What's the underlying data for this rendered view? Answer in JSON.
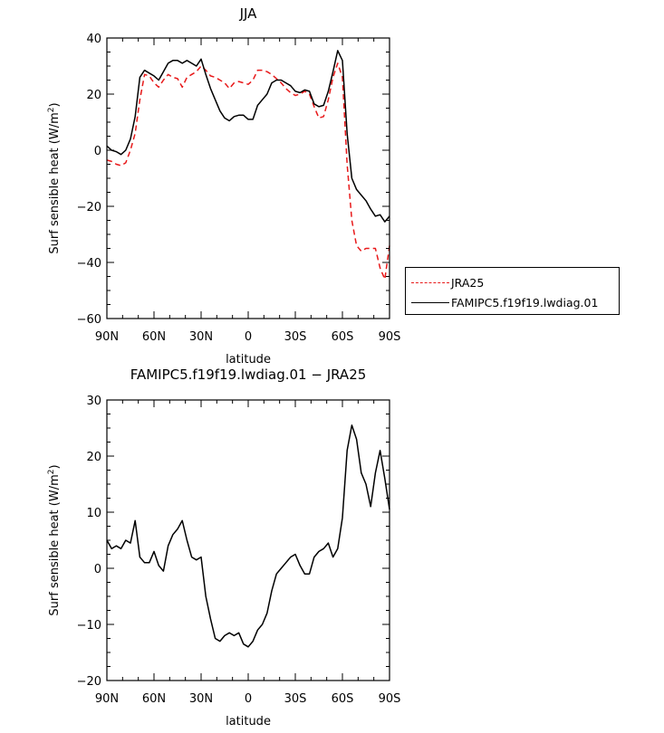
{
  "chart_data": [
    {
      "type": "line",
      "title": "JJA",
      "xlabel": "latitude",
      "ylabel": "Surf sensible heat (W/m²)",
      "ylabel_main": "Surf sensible heat (W/m",
      "ylabel_sup": "2",
      "ylabel_end": ")",
      "xlim": [
        90,
        -90
      ],
      "ylim": [
        -60,
        40
      ],
      "xticks": [
        90,
        60,
        30,
        0,
        -30,
        -60,
        -90
      ],
      "xtick_labels": [
        "90N",
        "60N",
        "30N",
        "0",
        "30S",
        "60S",
        "90S"
      ],
      "yticks": [
        -60,
        -40,
        -20,
        0,
        20,
        40
      ],
      "ytick_labels": [
        "−60",
        "−40",
        "−20",
        "0",
        "20",
        "40"
      ],
      "legend_position": "right",
      "series": [
        {
          "name": "JRA25",
          "color": "#e8191a",
          "dash": "dashed",
          "x": [
            90,
            87,
            84,
            81,
            78,
            75,
            72,
            69,
            66,
            63,
            60,
            57,
            54,
            51,
            48,
            45,
            42,
            39,
            36,
            33,
            30,
            27,
            24,
            21,
            18,
            15,
            12,
            9,
            6,
            3,
            0,
            -3,
            -6,
            -9,
            -12,
            -15,
            -18,
            -21,
            -24,
            -27,
            -30,
            -33,
            -36,
            -39,
            -42,
            -45,
            -48,
            -51,
            -54,
            -57,
            -60,
            -63,
            -66,
            -69,
            -72,
            -75,
            -78,
            -81,
            -84,
            -87,
            -90
          ],
          "y": [
            -3.5,
            -4,
            -5,
            -5.5,
            -4.5,
            0,
            6,
            18,
            27,
            26.5,
            24,
            22.5,
            25,
            27,
            26,
            25.5,
            22.5,
            26,
            27,
            28,
            30,
            28.5,
            26.5,
            26,
            25,
            24,
            22,
            24,
            24.5,
            24,
            23.5,
            25,
            28.5,
            28.5,
            28,
            27,
            25.5,
            24,
            22,
            20.5,
            19.5,
            20,
            21,
            20,
            15.5,
            11.5,
            12,
            18,
            26,
            31,
            26,
            -5,
            -25,
            -34,
            -36,
            -35,
            -35,
            -35,
            -42,
            -46,
            -34
          ]
        },
        {
          "name": "FAMIPC5.f19f19.lwdiag.01",
          "color": "#000000",
          "dash": "solid",
          "x": [
            90,
            87,
            84,
            81,
            78,
            75,
            72,
            69,
            66,
            63,
            60,
            57,
            54,
            51,
            48,
            45,
            42,
            39,
            36,
            33,
            30,
            27,
            24,
            21,
            18,
            15,
            12,
            9,
            6,
            3,
            0,
            -3,
            -6,
            -9,
            -12,
            -15,
            -18,
            -21,
            -24,
            -27,
            -30,
            -33,
            -36,
            -39,
            -42,
            -45,
            -48,
            -51,
            -54,
            -57,
            -60,
            -63,
            -66,
            -69,
            -72,
            -75,
            -78,
            -81,
            -84,
            -87,
            -90
          ],
          "y": [
            1.5,
            0,
            -0.5,
            -1.5,
            0,
            4,
            12,
            26,
            28.5,
            27.5,
            26.5,
            25,
            28,
            31,
            32,
            32,
            31,
            32,
            31,
            30,
            32.5,
            27,
            22,
            18,
            14,
            11.5,
            10.5,
            12,
            12.5,
            12.5,
            11,
            11,
            16,
            18,
            20,
            24,
            25,
            25,
            24,
            23,
            21,
            20.5,
            21.5,
            21,
            16.5,
            15.5,
            16,
            21,
            28,
            35.5,
            32,
            6,
            -10,
            -14,
            -16,
            -18,
            -21,
            -23.5,
            -23,
            -25.5,
            -23.5
          ]
        }
      ]
    },
    {
      "type": "line",
      "title": "FAMIPC5.f19f19.lwdiag.01 − JRA25",
      "xlabel": "latitude",
      "ylabel": "Surf sensible heat (W/m²)",
      "ylabel_main": "Surf sensible heat (W/m",
      "ylabel_sup": "2",
      "ylabel_end": ")",
      "xlim": [
        90,
        -90
      ],
      "ylim": [
        -20,
        30
      ],
      "xticks": [
        90,
        60,
        30,
        0,
        -30,
        -60,
        -90
      ],
      "xtick_labels": [
        "90N",
        "60N",
        "30N",
        "0",
        "30S",
        "60S",
        "90S"
      ],
      "yticks": [
        -20,
        -10,
        0,
        10,
        20,
        30
      ],
      "ytick_labels": [
        "−20",
        "−10",
        "0",
        "10",
        "20",
        "30"
      ],
      "series": [
        {
          "color": "#000000",
          "dash": "solid",
          "x": [
            90,
            87,
            84,
            81,
            78,
            75,
            72,
            69,
            66,
            63,
            60,
            57,
            54,
            51,
            48,
            45,
            42,
            39,
            36,
            33,
            30,
            27,
            24,
            21,
            18,
            15,
            12,
            9,
            6,
            3,
            0,
            -3,
            -6,
            -9,
            -12,
            -15,
            -18,
            -21,
            -24,
            -27,
            -30,
            -33,
            -36,
            -39,
            -42,
            -45,
            -48,
            -51,
            -54,
            -57,
            -60,
            -63,
            -66,
            -69,
            -72,
            -75,
            -78,
            -81,
            -84,
            -87,
            -90
          ],
          "y": [
            5,
            3.5,
            4,
            3.5,
            5,
            4.5,
            8.5,
            2,
            1,
            1,
            3,
            0.5,
            -0.5,
            4,
            6,
            7,
            8.5,
            5,
            2,
            1.5,
            2,
            -5,
            -9,
            -12.5,
            -13,
            -12,
            -11.5,
            -12,
            -11.5,
            -13.5,
            -14,
            -13,
            -11,
            -10,
            -8,
            -4,
            -1,
            0,
            1,
            2,
            2.5,
            0.5,
            -1,
            -1,
            2,
            3,
            3.5,
            4.5,
            2,
            3.5,
            9,
            21,
            25.5,
            23,
            17,
            15,
            11,
            17,
            21,
            16,
            10.5
          ]
        }
      ]
    }
  ]
}
